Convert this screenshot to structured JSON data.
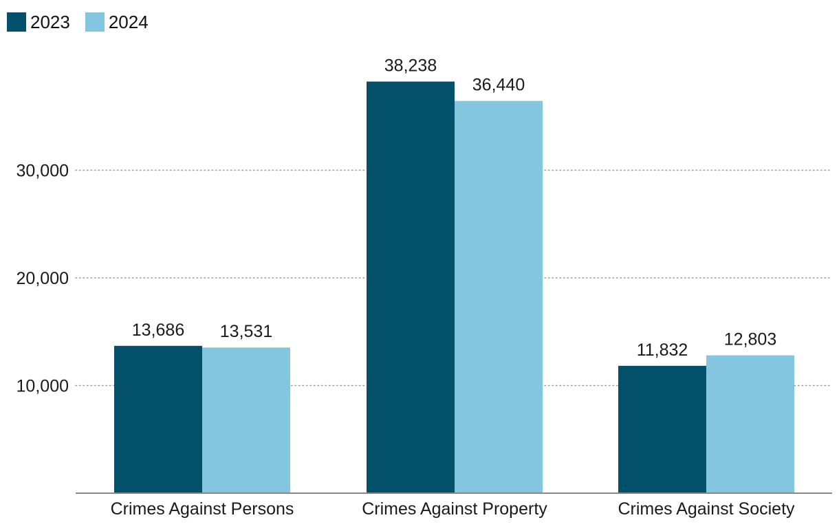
{
  "colors": {
    "series_2023": "#02506a",
    "series_2024": "#84c5df",
    "gridline": "#9a9a9a",
    "axis": "#888888",
    "text": "#1a1a1a"
  },
  "legend": {
    "items": [
      {
        "label": "2023",
        "color": "#02506a"
      },
      {
        "label": "2024",
        "color": "#84c5df"
      }
    ]
  },
  "chart_data": {
    "type": "bar",
    "title": "",
    "xlabel": "",
    "ylabel": "",
    "categories": [
      "Crimes Against Persons",
      "Crimes Against Property",
      "Crimes Against Society"
    ],
    "series": [
      {
        "name": "2023",
        "values": [
          13686,
          38238,
          11832
        ],
        "labels": [
          "13,686",
          "38,238",
          "11,832"
        ]
      },
      {
        "name": "2024",
        "values": [
          13531,
          36440,
          12803
        ],
        "labels": [
          "13,531",
          "36,440",
          "12,803"
        ]
      }
    ],
    "ylim": [
      0,
      40000
    ],
    "yticks": [
      10000,
      20000,
      30000
    ],
    "ytick_labels": [
      "10,000",
      "20,000",
      "30,000"
    ],
    "grid": true,
    "legend_position": "top-left"
  }
}
